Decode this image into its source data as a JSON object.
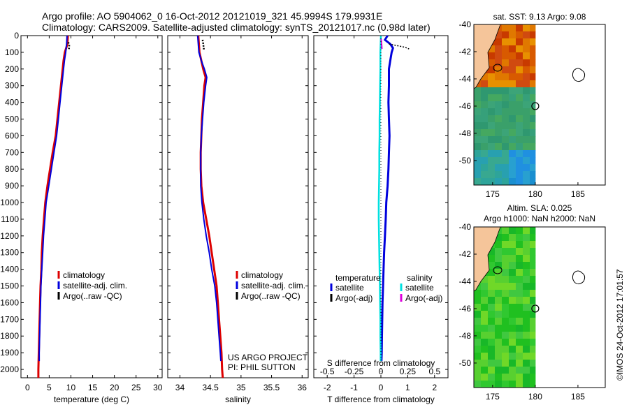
{
  "header": {
    "line1": "Argo profile: AO 5904062_0 16-Oct-2012 20121019_321 45.9994S 179.9931E",
    "line2": "Climatology: CARS2009. Satellite-adjusted climatology: synTS_20121017.nc (0.98d later)"
  },
  "colors": {
    "climatology": "#dd0000",
    "satellite": "#0000dd",
    "argo": "#000000",
    "salinity_satellite": "#00e0e0",
    "salinity_argo": "#dd00dd",
    "land": "#f5c59a"
  },
  "chart_data": [
    {
      "type": "line",
      "id": "temperature",
      "xlabel": "temperature (deg C)",
      "ylabel": "",
      "xlim": [
        -1.5,
        31
      ],
      "ylim": [
        2050,
        0
      ],
      "xticks": [
        0,
        5,
        10,
        15,
        20,
        25,
        30
      ],
      "yticks": [
        0,
        100,
        200,
        300,
        400,
        500,
        600,
        700,
        800,
        900,
        1000,
        1100,
        1200,
        1300,
        1400,
        1500,
        1600,
        1700,
        1800,
        1900,
        2000
      ],
      "legend": [
        "climatology",
        "satellite-adj. clim.",
        "Argo(..raw -QC)"
      ],
      "series": [
        {
          "name": "climatology",
          "depth": [
            0,
            50,
            100,
            150,
            200,
            300,
            400,
            500,
            600,
            700,
            800,
            900,
            1000,
            1100,
            1200,
            1300,
            1400,
            1500,
            1600,
            1700,
            1800,
            1900,
            2000,
            2050
          ],
          "values": [
            9.3,
            9.2,
            8.6,
            8.3,
            8.1,
            7.7,
            7.3,
            6.9,
            6.5,
            5.8,
            5.2,
            4.6,
            4.1,
            3.8,
            3.5,
            3.3,
            3.2,
            3.0,
            2.9,
            2.8,
            2.7,
            2.6,
            2.5,
            2.5
          ]
        },
        {
          "name": "satellite-adj. clim.",
          "depth": [
            0,
            50,
            100,
            150,
            200,
            300,
            400,
            500,
            600,
            700,
            800,
            900,
            1000,
            1100,
            1200,
            1300,
            1400,
            1500,
            1600,
            1700,
            1800,
            1900,
            1950
          ],
          "values": [
            9.1,
            9.0,
            8.8,
            8.5,
            8.3,
            7.9,
            7.5,
            7.1,
            6.7,
            6.1,
            5.5,
            4.9,
            4.3,
            4.0,
            3.7,
            3.5,
            3.3,
            3.1,
            3.0,
            2.9,
            2.8,
            2.7,
            2.7
          ]
        },
        {
          "name": "Argo(..raw -QC)",
          "depth": [
            40,
            55,
            70,
            85
          ],
          "values": [
            9.4,
            9.6,
            9.6,
            9.5
          ]
        }
      ]
    },
    {
      "type": "line",
      "id": "salinity",
      "xlabel": "salinity",
      "ylabel": "",
      "xlim": [
        33.8,
        36.1
      ],
      "ylim": [
        2050,
        0
      ],
      "xticks": [
        34,
        34.5,
        35,
        35.5,
        36
      ],
      "legend": [
        "climatology",
        "satellite-adj. clim.",
        "Argo(..raw -QC)"
      ],
      "series": [
        {
          "name": "climatology",
          "depth": [
            0,
            100,
            150,
            200,
            250,
            300,
            400,
            500,
            600,
            700,
            800,
            900,
            1000,
            1100,
            1200,
            1300,
            1400,
            1500,
            1600,
            1700,
            1800,
            1900,
            2000,
            2050
          ],
          "values": [
            34.3,
            34.32,
            34.35,
            34.38,
            34.42,
            34.4,
            34.38,
            34.36,
            34.35,
            34.34,
            34.34,
            34.35,
            34.38,
            34.43,
            34.48,
            34.52,
            34.56,
            34.6,
            34.62,
            34.64,
            34.66,
            34.68,
            34.69,
            34.7
          ]
        },
        {
          "name": "satellite-adj. clim.",
          "depth": [
            0,
            100,
            150,
            200,
            250,
            300,
            400,
            500,
            600,
            700,
            800,
            900,
            1000,
            1100,
            1200,
            1300,
            1400,
            1500,
            1600,
            1700,
            1800,
            1900,
            1950
          ],
          "values": [
            34.29,
            34.31,
            34.35,
            34.4,
            34.44,
            34.42,
            34.39,
            34.37,
            34.35,
            34.34,
            34.34,
            34.34,
            34.36,
            34.39,
            34.43,
            34.48,
            34.52,
            34.57,
            34.6,
            34.62,
            34.64,
            34.66,
            34.67
          ]
        },
        {
          "name": "Argo(..raw -QC)",
          "depth": [
            25,
            40,
            55,
            70,
            85
          ],
          "values": [
            34.37,
            34.38,
            34.38,
            34.39,
            34.39
          ]
        }
      ],
      "annotations": [
        "US ARGO PROJECT",
        "PI: PHIL SUTTON"
      ]
    },
    {
      "type": "line",
      "id": "difference",
      "xlabel": "T difference from climatology",
      "xlabel2": "S difference from climatology",
      "xlim": [
        -2.5,
        2.5
      ],
      "ylim": [
        2050,
        0
      ],
      "xticks": [
        -2,
        -1,
        0,
        1,
        2
      ],
      "xticks2": [
        -0.5,
        -0.25,
        0,
        0.25,
        0.5
      ],
      "legend_t": {
        "title": "temperature",
        "items": [
          "satellite",
          "Argo(-adj)"
        ]
      },
      "legend_s": {
        "title": "salinity",
        "items": [
          "satellite",
          "Argo(-adj)"
        ]
      },
      "series": [
        {
          "name": "temperature satellite",
          "depth": [
            0,
            25,
            50,
            75,
            100,
            150,
            200,
            300,
            400,
            500,
            600,
            700,
            800,
            900,
            1000,
            1100,
            1200,
            1300,
            1400,
            1500,
            1600,
            1700,
            1800,
            1900,
            1950
          ],
          "values": [
            0.25,
            0.15,
            0.35,
            0.45,
            0.4,
            0.35,
            0.3,
            0.3,
            0.28,
            0.3,
            0.32,
            0.3,
            0.28,
            0.25,
            0.2,
            0.18,
            0.15,
            0.12,
            0.1,
            0.08,
            0.06,
            0.05,
            0.04,
            0.03,
            0.02
          ]
        },
        {
          "name": "temperature Argo(-adj)",
          "depth": [
            50,
            60,
            70,
            80
          ],
          "values": [
            0.3,
            0.6,
            0.9,
            1.05
          ]
        },
        {
          "name": "salinity satellite",
          "depth": [
            0,
            100,
            200,
            300,
            400,
            500,
            600,
            700,
            800,
            900,
            1000,
            1100,
            1200,
            1300,
            1400,
            1500,
            1600,
            1700,
            1800,
            1900,
            1950
          ],
          "values": [
            0.0,
            -0.02,
            -0.02,
            -0.03,
            -0.04,
            -0.05,
            -0.05,
            -0.06,
            -0.06,
            -0.07,
            -0.08,
            -0.08,
            -0.07,
            -0.06,
            -0.05,
            -0.04,
            -0.03,
            -0.02,
            -0.02,
            -0.01,
            -0.01
          ]
        },
        {
          "name": "salinity Argo(-adj)",
          "depth": [
            20,
            40,
            60,
            80
          ],
          "values": [
            0.01,
            0.02,
            0.03,
            0.04
          ]
        }
      ]
    },
    {
      "type": "heatmap",
      "id": "sst_map",
      "title": "sat. SST: 9.13 Argo: 9.08",
      "xticks": [
        175,
        180,
        185
      ],
      "yticks": [
        -40,
        -42,
        -44,
        -46,
        -48,
        -50
      ],
      "xlim": [
        172.8,
        188.2
      ],
      "ylim": [
        -51.8,
        -40
      ],
      "argo_location": [
        180.0,
        -46.0
      ]
    },
    {
      "type": "heatmap",
      "id": "sla_map",
      "title": "Altim. SLA: 0.025",
      "subtitle": "Argo h1000: NaN h2000: NaN",
      "xticks": [
        175,
        180,
        185
      ],
      "yticks": [
        -40,
        -42,
        -44,
        -46,
        -48,
        -50
      ],
      "xlim": [
        172.8,
        188.2
      ],
      "ylim": [
        -51.8,
        -40
      ],
      "argo_location": [
        180.0,
        -46.0
      ]
    }
  ],
  "footer": {
    "stamp": "©IMOS 24-Oct-2012 17:01:57"
  }
}
